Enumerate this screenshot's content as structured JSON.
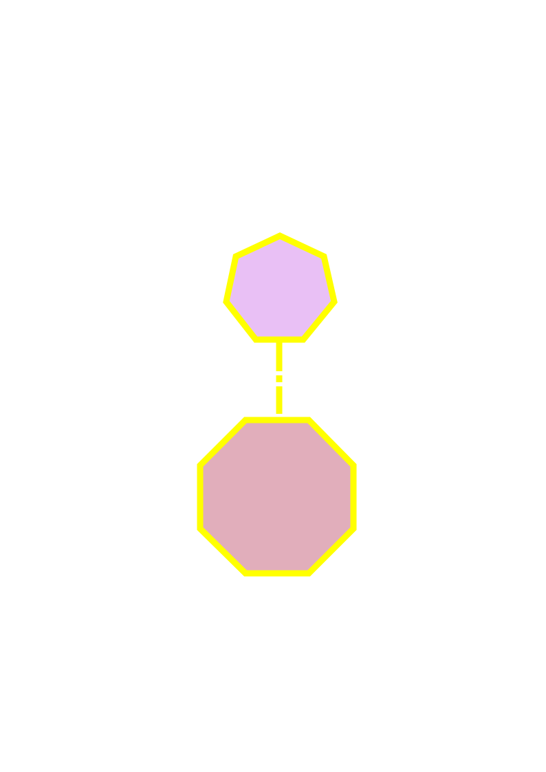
{
  "diagram": {
    "nodes": [
      {
        "id": "heptagon",
        "shape": "heptagon",
        "fill": "#E9C0F5",
        "stroke": "#FFFF00"
      },
      {
        "id": "octagon",
        "shape": "octagon",
        "fill": "#E1AEBB",
        "stroke": "#FFFF00"
      }
    ],
    "edges": [
      {
        "from": "heptagon",
        "to": "octagon",
        "style": "dashed",
        "stroke": "#FFFF00"
      }
    ]
  }
}
